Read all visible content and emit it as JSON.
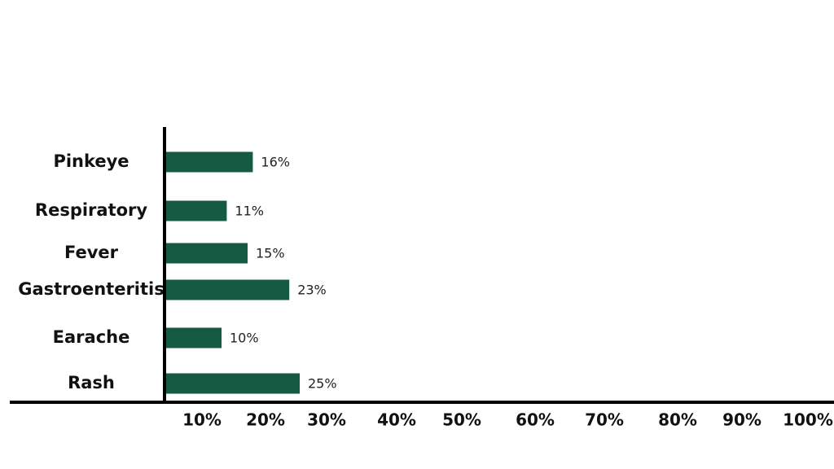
{
  "chart_data": {
    "type": "bar",
    "orientation": "horizontal",
    "categories": [
      "Pinkeye",
      "Respiratory",
      "Fever",
      "Gastroenteritis",
      "Earache",
      "Rash"
    ],
    "values": [
      16,
      11,
      15,
      23,
      10,
      25
    ],
    "value_labels": [
      "16%",
      "11%",
      "15%",
      "23%",
      "10%",
      "25%"
    ],
    "x_ticks": [
      {
        "value": 10,
        "label": "10%"
      },
      {
        "value": 20,
        "label": "20%"
      },
      {
        "value": 30,
        "label": "30%"
      },
      {
        "value": 40,
        "label": "40%"
      },
      {
        "value": 50,
        "label": "50%"
      },
      {
        "value": 60,
        "label": "60%"
      },
      {
        "value": 70,
        "label": "70%"
      },
      {
        "value": 80,
        "label": "80%"
      },
      {
        "value": 90,
        "label": "90%"
      },
      {
        "value": 100,
        "label": "100%"
      }
    ],
    "xlim": [
      0,
      100
    ],
    "title": "",
    "xlabel": "",
    "ylabel": "",
    "grid": false,
    "bar_color": "#155a42",
    "axis_color": "#000000"
  }
}
